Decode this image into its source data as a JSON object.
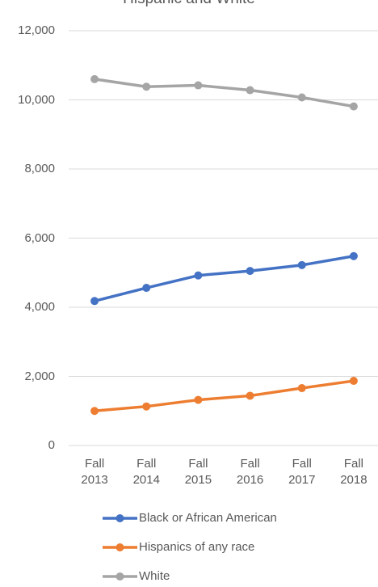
{
  "chart_data": {
    "type": "line",
    "title": "Hispanic and White",
    "categories": [
      "Fall 2013",
      "Fall 2014",
      "Fall 2015",
      "Fall 2016",
      "Fall 2017",
      "Fall 2018"
    ],
    "series": [
      {
        "name": "Black or African American",
        "color": "#4472c4",
        "values": [
          4180,
          4560,
          4920,
          5050,
          5220,
          5480
        ]
      },
      {
        "name": "Hispanics of any race",
        "color": "#ed7d31",
        "values": [
          1000,
          1130,
          1320,
          1440,
          1660,
          1870
        ]
      },
      {
        "name": "White",
        "color": "#a5a5a5",
        "values": [
          10600,
          10380,
          10420,
          10280,
          10070,
          9810
        ]
      }
    ],
    "ylim": [
      0,
      12000
    ],
    "yticks": [
      0,
      {
        "value": 2000,
        "label": "2,000"
      },
      {
        "value": 4000,
        "label": "4,000"
      },
      {
        "value": 6000,
        "label": "6,000"
      },
      {
        "value": 8000,
        "label": "8,000"
      },
      {
        "value": 10000,
        "label": "10,000"
      },
      {
        "value": 12000,
        "label": "12,000"
      }
    ],
    "grid": true,
    "legend": "bottom"
  }
}
